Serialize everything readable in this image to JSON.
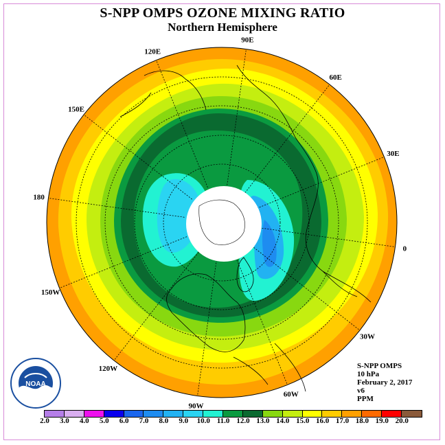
{
  "title": "S-NPP OMPS OZONE MIXING RATIO",
  "subtitle": "Northern Hemisphere",
  "longitude_labels": [
    "0",
    "30E",
    "60E",
    "90E",
    "120E",
    "150E",
    "180",
    "150W",
    "120W",
    "90W",
    "60W",
    "30W"
  ],
  "info": {
    "instrument": "S-NPP OMPS",
    "level": "10 hPa",
    "date": "February 2, 2017",
    "version": "v6",
    "units": "PPM"
  },
  "logo": {
    "text": "NOAA",
    "ring_text": "NATIONAL OCEANIC AND ATMOSPHERIC ADMINISTRATION · U.S. DEPARTMENT OF COMMERCE"
  },
  "colorbar": {
    "ticks": [
      "2.0",
      "3.0",
      "4.0",
      "5.0",
      "6.0",
      "7.0",
      "8.0",
      "9.0",
      "10.0",
      "11.0",
      "12.0",
      "13.0",
      "14.0",
      "15.0",
      "16.0",
      "17.0",
      "18.0",
      "19.0",
      "20.0"
    ],
    "colors": [
      "#b57ee8",
      "#d9aef0",
      "#ee11ee",
      "#0a00ee",
      "#1a66ee",
      "#1e8cf0",
      "#22b2f2",
      "#2ad4f2",
      "#22f2d2",
      "#0a9a40",
      "#0a6a30",
      "#88d810",
      "#c4ee10",
      "#ffff00",
      "#ffcc00",
      "#ffa000",
      "#ff6a00",
      "#ff0000",
      "#8a5a3a"
    ]
  },
  "map_colors": {
    "orange": "#ffa000",
    "light_orange": "#ffcc00",
    "yellow": "#ffff00",
    "yellow_green": "#c4ee10",
    "green": "#88d810",
    "mid_green": "#0a9a40",
    "dark_green": "#0a6a30",
    "aqua": "#22f2d2",
    "cyan": "#2ad4f2",
    "blue": "#22b2f2"
  }
}
